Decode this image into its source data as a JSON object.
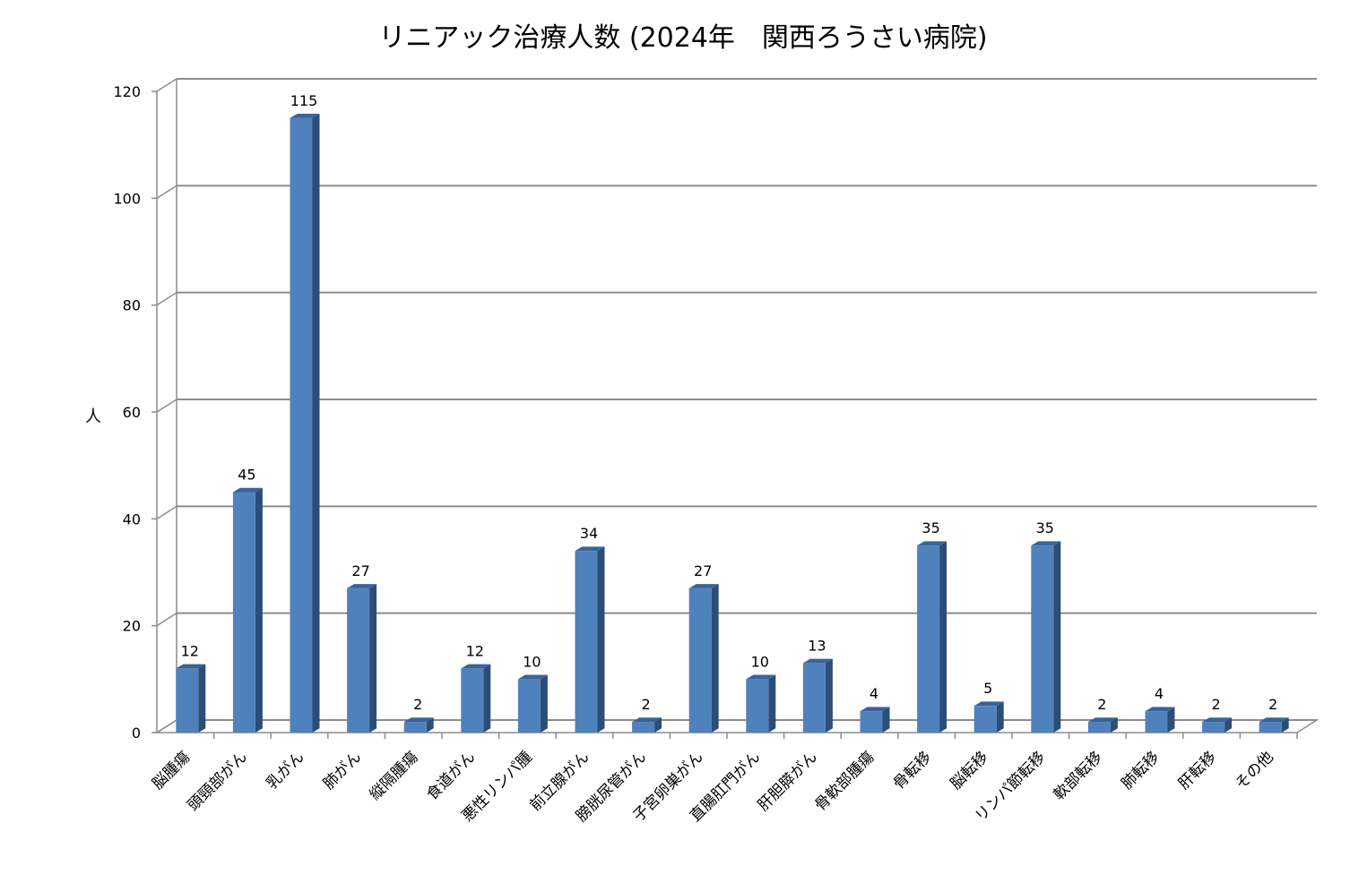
{
  "chart_data": {
    "type": "bar",
    "title": "リニアック治療人数 (2024年　関西ろうさい病院)",
    "xlabel": "",
    "ylabel": "人",
    "ylim": [
      0,
      120
    ],
    "yticks": [
      0,
      20,
      40,
      60,
      80,
      100,
      120
    ],
    "grid": true,
    "legend": "none",
    "bar_color": "#4f81bd",
    "categories": [
      "脳腫瘍",
      "頭頸部がん",
      "乳がん",
      "肺がん",
      "縦隔腫瘍",
      "食道がん",
      "悪性リンパ腫",
      "前立腺がん",
      "膀胱尿管がん",
      "子宮卵巣がん",
      "直腸肛門がん",
      "肝胆膵がん",
      "骨軟部腫瘍",
      "骨転移",
      "脳転移",
      "リンパ節転移",
      "軟部転移",
      "肺転移",
      "肝転移",
      "その他"
    ],
    "values": [
      12,
      45,
      115,
      27,
      2,
      12,
      10,
      34,
      2,
      27,
      10,
      13,
      4,
      35,
      5,
      35,
      2,
      4,
      2,
      2
    ]
  }
}
